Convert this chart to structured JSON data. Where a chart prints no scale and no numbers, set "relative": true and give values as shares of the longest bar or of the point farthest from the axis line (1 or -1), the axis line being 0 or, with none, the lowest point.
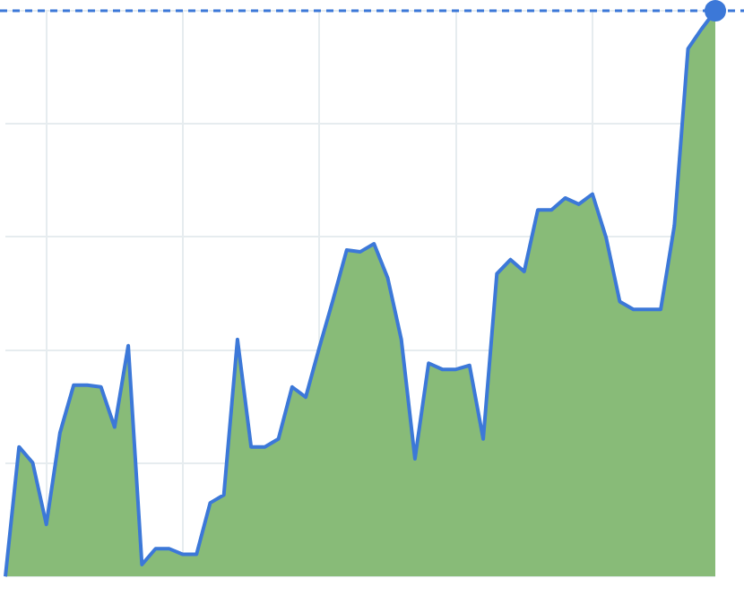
{
  "chart_data": {
    "type": "area",
    "relative": true,
    "grid": true,
    "legend": false,
    "categories": [
      null,
      null,
      null,
      null,
      null,
      null,
      null,
      null,
      null,
      null,
      null,
      null,
      null,
      null,
      null,
      null,
      null,
      null,
      null,
      null,
      null,
      null,
      null,
      null,
      null,
      null,
      null,
      null,
      null,
      null,
      null,
      null,
      null,
      null,
      null,
      null,
      null,
      null,
      null,
      null,
      null,
      null,
      null,
      null,
      null,
      null,
      null,
      null,
      null,
      null,
      null,
      null,
      null
    ],
    "series": [
      {
        "color": "#88bb78",
        "values": [
          0,
          0.229,
          0.201,
          0.092,
          0.254,
          0.338,
          0.338,
          0.335,
          0.264,
          0.408,
          0.021,
          0.049,
          0.049,
          0.039,
          0.039,
          0.13,
          0.144,
          0.419,
          0.229,
          0.229,
          0.243,
          0.335,
          0.317,
          0.405,
          0.489,
          0.577,
          0.574,
          0.588,
          0.528,
          0.419,
          0.208,
          0.377,
          0.366,
          0.366,
          0.373,
          0.243,
          0.535,
          0.56,
          0.539,
          0.648,
          0.648,
          0.669,
          0.658,
          0.676,
          0.599,
          0.486,
          0.472,
          0.472,
          0.472,
          0.62,
          0.933,
          0.968,
          1
        ]
      }
    ],
    "ref_lines": [
      {
        "axis": "y",
        "value": 1,
        "color": "#3c78d8",
        "line_style": "dashed"
      }
    ]
  }
}
